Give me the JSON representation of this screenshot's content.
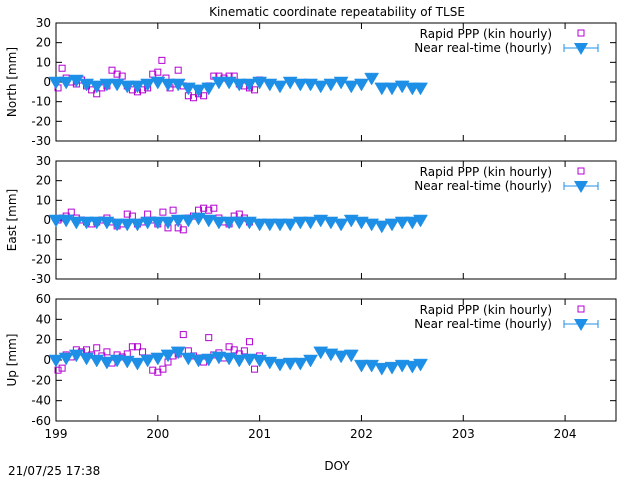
{
  "title": "Kinematic coordinate repeatability of TLSE",
  "timestamp": "21/07/25 17:38",
  "colors": {
    "rapid": "#b400d2",
    "nrt": "#1e8fe6"
  },
  "chart_data": {
    "type": "scatter",
    "title": "Kinematic coordinate repeatability of TLSE",
    "xlabel": "DOY",
    "xlim": [
      199,
      204.5
    ],
    "x_ticks": [
      "199",
      "200",
      "201",
      "202",
      "203",
      "204"
    ],
    "legend_position": "top-right",
    "legend": {
      "rapid": "Rapid PPP (kin hourly)",
      "nrt": "Near real-time (hourly)"
    },
    "panels": [
      {
        "ylabel": "North [mm]",
        "ylim": [
          -30,
          30
        ],
        "y_ticks": [
          "30",
          "20",
          "10",
          "0",
          "-10",
          "-20",
          "-30"
        ],
        "series": [
          {
            "name": "Rapid PPP (kin hourly)",
            "marker": "open-square",
            "x": [
              199.02,
              199.06,
              199.1,
              199.15,
              199.2,
              199.25,
              199.3,
              199.35,
              199.4,
              199.45,
              199.5,
              199.55,
              199.6,
              199.65,
              199.7,
              199.75,
              199.8,
              199.85,
              199.9,
              199.95,
              200.0,
              200.04,
              200.08,
              200.12,
              200.16,
              200.2,
              200.25,
              200.3,
              200.35,
              200.4,
              200.45,
              200.5,
              200.55,
              200.6,
              200.65,
              200.7,
              200.75,
              200.8,
              200.85,
              200.9,
              200.95,
              201.0
            ],
            "y": [
              -3,
              7,
              2,
              0,
              -1,
              1,
              -2,
              -4,
              -6,
              -3,
              -2,
              6,
              4,
              3,
              -2,
              -4,
              -5,
              -4,
              -3,
              4,
              5,
              11,
              2,
              -3,
              -1,
              6,
              -2,
              -7,
              -8,
              -6,
              -7,
              -2,
              3,
              3,
              2,
              3,
              3,
              -1,
              -2,
              -3,
              -4,
              1
            ]
          },
          {
            "name": "Near real-time (hourly)",
            "marker": "filled-down-triangle",
            "x": [
              199.0,
              199.1,
              199.2,
              199.3,
              199.4,
              199.5,
              199.6,
              199.7,
              199.8,
              199.9,
              200.0,
              200.1,
              200.2,
              200.3,
              200.4,
              200.5,
              200.6,
              200.7,
              200.8,
              200.9,
              201.0,
              201.1,
              201.2,
              201.3,
              201.4,
              201.5,
              201.6,
              201.7,
              201.8,
              201.9,
              202.0,
              202.1,
              202.2,
              202.3,
              202.4,
              202.5,
              202.58
            ],
            "y": [
              0,
              0,
              1,
              -1,
              -2,
              -1,
              -1,
              -2,
              -2,
              -1,
              0,
              -1,
              -1,
              -3,
              -4,
              -3,
              0,
              0,
              -1,
              -1,
              0,
              -1,
              -2,
              0,
              -1,
              -1,
              -2,
              -1,
              0,
              -2,
              -1,
              2,
              -3,
              -3,
              -2,
              -3,
              -3
            ]
          }
        ]
      },
      {
        "ylabel": "East [mm]",
        "ylim": [
          -30,
          30
        ],
        "y_ticks": [
          "30",
          "20",
          "10",
          "0",
          "-10",
          "-20",
          "-30"
        ],
        "series": [
          {
            "name": "Rapid PPP (kin hourly)",
            "marker": "open-square",
            "x": [
              199.02,
              199.06,
              199.1,
              199.15,
              199.2,
              199.25,
              199.3,
              199.35,
              199.4,
              199.45,
              199.5,
              199.55,
              199.6,
              199.65,
              199.7,
              199.75,
              199.8,
              199.85,
              199.9,
              199.95,
              200.0,
              200.05,
              200.1,
              200.15,
              200.2,
              200.25,
              200.3,
              200.35,
              200.4,
              200.45,
              200.5,
              200.55,
              200.6,
              200.65,
              200.7,
              200.75,
              200.8,
              200.85,
              200.9
            ],
            "y": [
              0,
              1,
              2,
              4,
              1,
              0,
              -1,
              -2,
              -1,
              0,
              1,
              -1,
              -3,
              -2,
              3,
              2,
              -2,
              -1,
              3,
              0,
              -2,
              4,
              -4,
              5,
              -4,
              -5,
              1,
              2,
              5,
              6,
              5,
              6,
              1,
              -1,
              -2,
              2,
              3,
              1,
              -1
            ]
          },
          {
            "name": "Near real-time (hourly)",
            "marker": "filled-down-triangle",
            "x": [
              199.0,
              199.1,
              199.2,
              199.3,
              199.4,
              199.5,
              199.6,
              199.7,
              199.8,
              199.9,
              200.0,
              200.1,
              200.2,
              200.3,
              200.4,
              200.5,
              200.6,
              200.7,
              200.8,
              200.9,
              201.0,
              201.1,
              201.2,
              201.3,
              201.4,
              201.5,
              201.6,
              201.7,
              201.8,
              201.9,
              202.0,
              202.1,
              202.2,
              202.3,
              202.4,
              202.5,
              202.58
            ],
            "y": [
              0,
              0,
              -1,
              -1,
              -1,
              -1,
              -2,
              -2,
              -2,
              -1,
              -1,
              -1,
              0,
              0,
              1,
              0,
              -1,
              -1,
              -1,
              -1,
              -2,
              -2,
              -2,
              -2,
              -1,
              -1,
              0,
              -1,
              -2,
              0,
              -1,
              -2,
              -3,
              -2,
              -1,
              -1,
              0
            ]
          }
        ]
      },
      {
        "ylabel": "Up [mm]",
        "ylim": [
          -60,
          60
        ],
        "y_ticks": [
          "60",
          "40",
          "20",
          "0",
          "-20",
          "-40",
          "-60"
        ],
        "series": [
          {
            "name": "Rapid PPP (kin hourly)",
            "marker": "open-square",
            "x": [
              199.02,
              199.06,
              199.1,
              199.15,
              199.2,
              199.25,
              199.3,
              199.35,
              199.4,
              199.45,
              199.5,
              199.55,
              199.6,
              199.65,
              199.7,
              199.75,
              199.8,
              199.85,
              199.9,
              199.95,
              200.0,
              200.05,
              200.1,
              200.15,
              200.2,
              200.25,
              200.3,
              200.35,
              200.4,
              200.45,
              200.5,
              200.55,
              200.6,
              200.65,
              200.7,
              200.75,
              200.8,
              200.85,
              200.9,
              200.95,
              201.0
            ],
            "y": [
              -10,
              -8,
              5,
              3,
              10,
              8,
              10,
              5,
              12,
              4,
              8,
              -3,
              5,
              3,
              6,
              13,
              13,
              8,
              2,
              -10,
              -12,
              -9,
              -2,
              4,
              6,
              25,
              9,
              4,
              2,
              -2,
              22,
              5,
              7,
              2,
              13,
              10,
              6,
              9,
              18,
              -9,
              4
            ]
          },
          {
            "name": "Near real-time (hourly)",
            "marker": "filled-down-triangle",
            "x": [
              199.0,
              199.1,
              199.2,
              199.3,
              199.4,
              199.5,
              199.6,
              199.7,
              199.8,
              199.9,
              200.0,
              200.1,
              200.2,
              200.3,
              200.4,
              200.5,
              200.6,
              200.7,
              200.8,
              200.9,
              201.0,
              201.1,
              201.2,
              201.3,
              201.4,
              201.5,
              201.6,
              201.7,
              201.8,
              201.9,
              202.0,
              202.1,
              202.2,
              202.3,
              202.4,
              202.5,
              202.58
            ],
            "y": [
              0,
              2,
              5,
              2,
              0,
              -2,
              0,
              -1,
              -3,
              0,
              2,
              5,
              8,
              2,
              0,
              1,
              3,
              2,
              0,
              1,
              0,
              -2,
              -4,
              -3,
              -3,
              0,
              8,
              6,
              4,
              5,
              -5,
              -5,
              -8,
              -7,
              -5,
              -6,
              -4
            ]
          }
        ]
      }
    ]
  }
}
